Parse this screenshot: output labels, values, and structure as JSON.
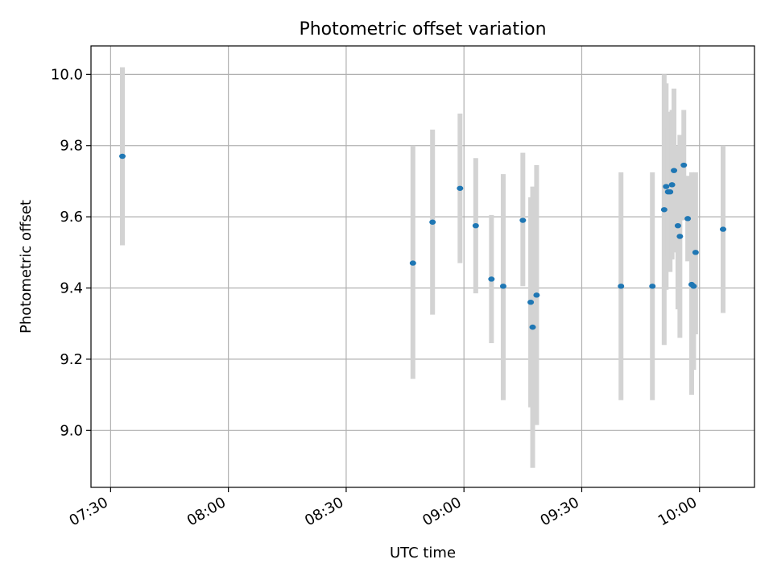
{
  "chart_data": {
    "type": "scatter",
    "title": "Photometric offset variation",
    "xlabel": "UTC time",
    "ylabel": "Photometric offset",
    "x_axis_kind": "time",
    "xlim": [
      "07:25",
      "10:14"
    ],
    "ylim": [
      8.84,
      10.08
    ],
    "x_ticks": [
      "07:30",
      "08:00",
      "08:30",
      "09:00",
      "09:30",
      "10:00"
    ],
    "y_ticks": [
      "9.0",
      "9.2",
      "9.4",
      "9.6",
      "9.8",
      "10.0"
    ],
    "grid": true,
    "legend": "none",
    "colors": {
      "points": "#1f77b4",
      "error_bars": "#d3d3d3",
      "grid": "#b0b0b0"
    },
    "points": [
      {
        "x": "07:33",
        "y": 9.77,
        "yerr_low": 9.52,
        "yerr_high": 10.02
      },
      {
        "x": "08:47",
        "y": 9.47,
        "yerr_low": 9.145,
        "yerr_high": 9.8
      },
      {
        "x": "08:52",
        "y": 9.585,
        "yerr_low": 9.325,
        "yerr_high": 9.845
      },
      {
        "x": "08:59",
        "y": 9.68,
        "yerr_low": 9.47,
        "yerr_high": 9.89
      },
      {
        "x": "09:03",
        "y": 9.575,
        "yerr_low": 9.385,
        "yerr_high": 9.765
      },
      {
        "x": "09:07",
        "y": 9.425,
        "yerr_low": 9.245,
        "yerr_high": 9.605
      },
      {
        "x": "09:10",
        "y": 9.405,
        "yerr_low": 9.085,
        "yerr_high": 9.72
      },
      {
        "x": "09:15",
        "y": 9.59,
        "yerr_low": 9.405,
        "yerr_high": 9.78
      },
      {
        "x": "09:17",
        "y": 9.36,
        "yerr_low": 9.065,
        "yerr_high": 9.655
      },
      {
        "x": "09:17.5",
        "y": 9.29,
        "yerr_low": 8.895,
        "yerr_high": 9.685
      },
      {
        "x": "09:18.5",
        "y": 9.38,
        "yerr_low": 9.015,
        "yerr_high": 9.745
      },
      {
        "x": "09:40",
        "y": 9.405,
        "yerr_low": 9.085,
        "yerr_high": 9.725
      },
      {
        "x": "09:48",
        "y": 9.405,
        "yerr_low": 9.085,
        "yerr_high": 9.725
      },
      {
        "x": "09:51",
        "y": 9.62,
        "yerr_low": 9.24,
        "yerr_high": 10.0
      },
      {
        "x": "09:51.5",
        "y": 9.685,
        "yerr_low": 9.395,
        "yerr_high": 9.975
      },
      {
        "x": "09:52",
        "y": 9.67,
        "yerr_low": 9.49,
        "yerr_high": 9.85
      },
      {
        "x": "09:52.5",
        "y": 9.67,
        "yerr_low": 9.445,
        "yerr_high": 9.895
      },
      {
        "x": "09:53",
        "y": 9.69,
        "yerr_low": 9.48,
        "yerr_high": 9.9
      },
      {
        "x": "09:53.5",
        "y": 9.73,
        "yerr_low": 9.5,
        "yerr_high": 9.96
      },
      {
        "x": "09:54.5",
        "y": 9.575,
        "yerr_low": 9.34,
        "yerr_high": 9.8
      },
      {
        "x": "09:55",
        "y": 9.545,
        "yerr_low": 9.26,
        "yerr_high": 9.83
      },
      {
        "x": "09:56",
        "y": 9.745,
        "yerr_low": 9.59,
        "yerr_high": 9.9
      },
      {
        "x": "09:57",
        "y": 9.595,
        "yerr_low": 9.475,
        "yerr_high": 9.715
      },
      {
        "x": "09:58",
        "y": 9.41,
        "yerr_low": 9.1,
        "yerr_high": 9.725
      },
      {
        "x": "09:58.5",
        "y": 9.405,
        "yerr_low": 9.17,
        "yerr_high": 9.64
      },
      {
        "x": "09:59",
        "y": 9.5,
        "yerr_low": 9.27,
        "yerr_high": 9.725
      },
      {
        "x": "10:06",
        "y": 9.565,
        "yerr_low": 9.33,
        "yerr_high": 9.8
      }
    ]
  }
}
